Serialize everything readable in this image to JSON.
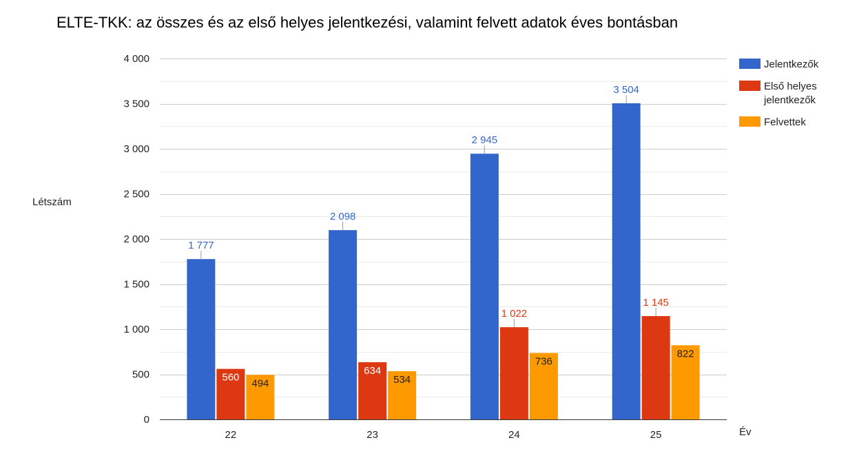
{
  "chart_data": {
    "type": "bar",
    "title": "ELTE-TKK: az összes és az első helyes jelentkezési, valamint felvett adatok éves bontásban",
    "xlabel": "Év",
    "ylabel": "Létszám",
    "categories": [
      "22",
      "23",
      "24",
      "25"
    ],
    "ylim": [
      0,
      4000
    ],
    "yticks": [
      0,
      500,
      1000,
      1500,
      2000,
      2500,
      3000,
      3500,
      4000
    ],
    "ytick_labels": [
      "0",
      "500",
      "1 000",
      "1 500",
      "2 000",
      "2 500",
      "3 000",
      "3 500",
      "4 000"
    ],
    "grid": true,
    "legend_position": "right",
    "series": [
      {
        "name": "Jelentkezők",
        "color": "#3366cc",
        "values": [
          1777,
          2098,
          2945,
          3504
        ],
        "labels": [
          "1 777",
          "2 098",
          "2 945",
          "3 504"
        ],
        "label_color": "#3366cc"
      },
      {
        "name": "Első helyes jelentkezők",
        "legend_lines": [
          "Első helyes",
          "jelentkezők"
        ],
        "color": "#dc3912",
        "values": [
          560,
          634,
          1022,
          1145
        ],
        "labels": [
          "560",
          "634",
          "1 022",
          "1 145"
        ],
        "label_color": "#dc3912"
      },
      {
        "name": "Felvettek",
        "color": "#ff9900",
        "values": [
          494,
          534,
          736,
          822
        ],
        "labels": [
          "494",
          "534",
          "736",
          "822"
        ],
        "label_color": "#222222"
      }
    ]
  }
}
